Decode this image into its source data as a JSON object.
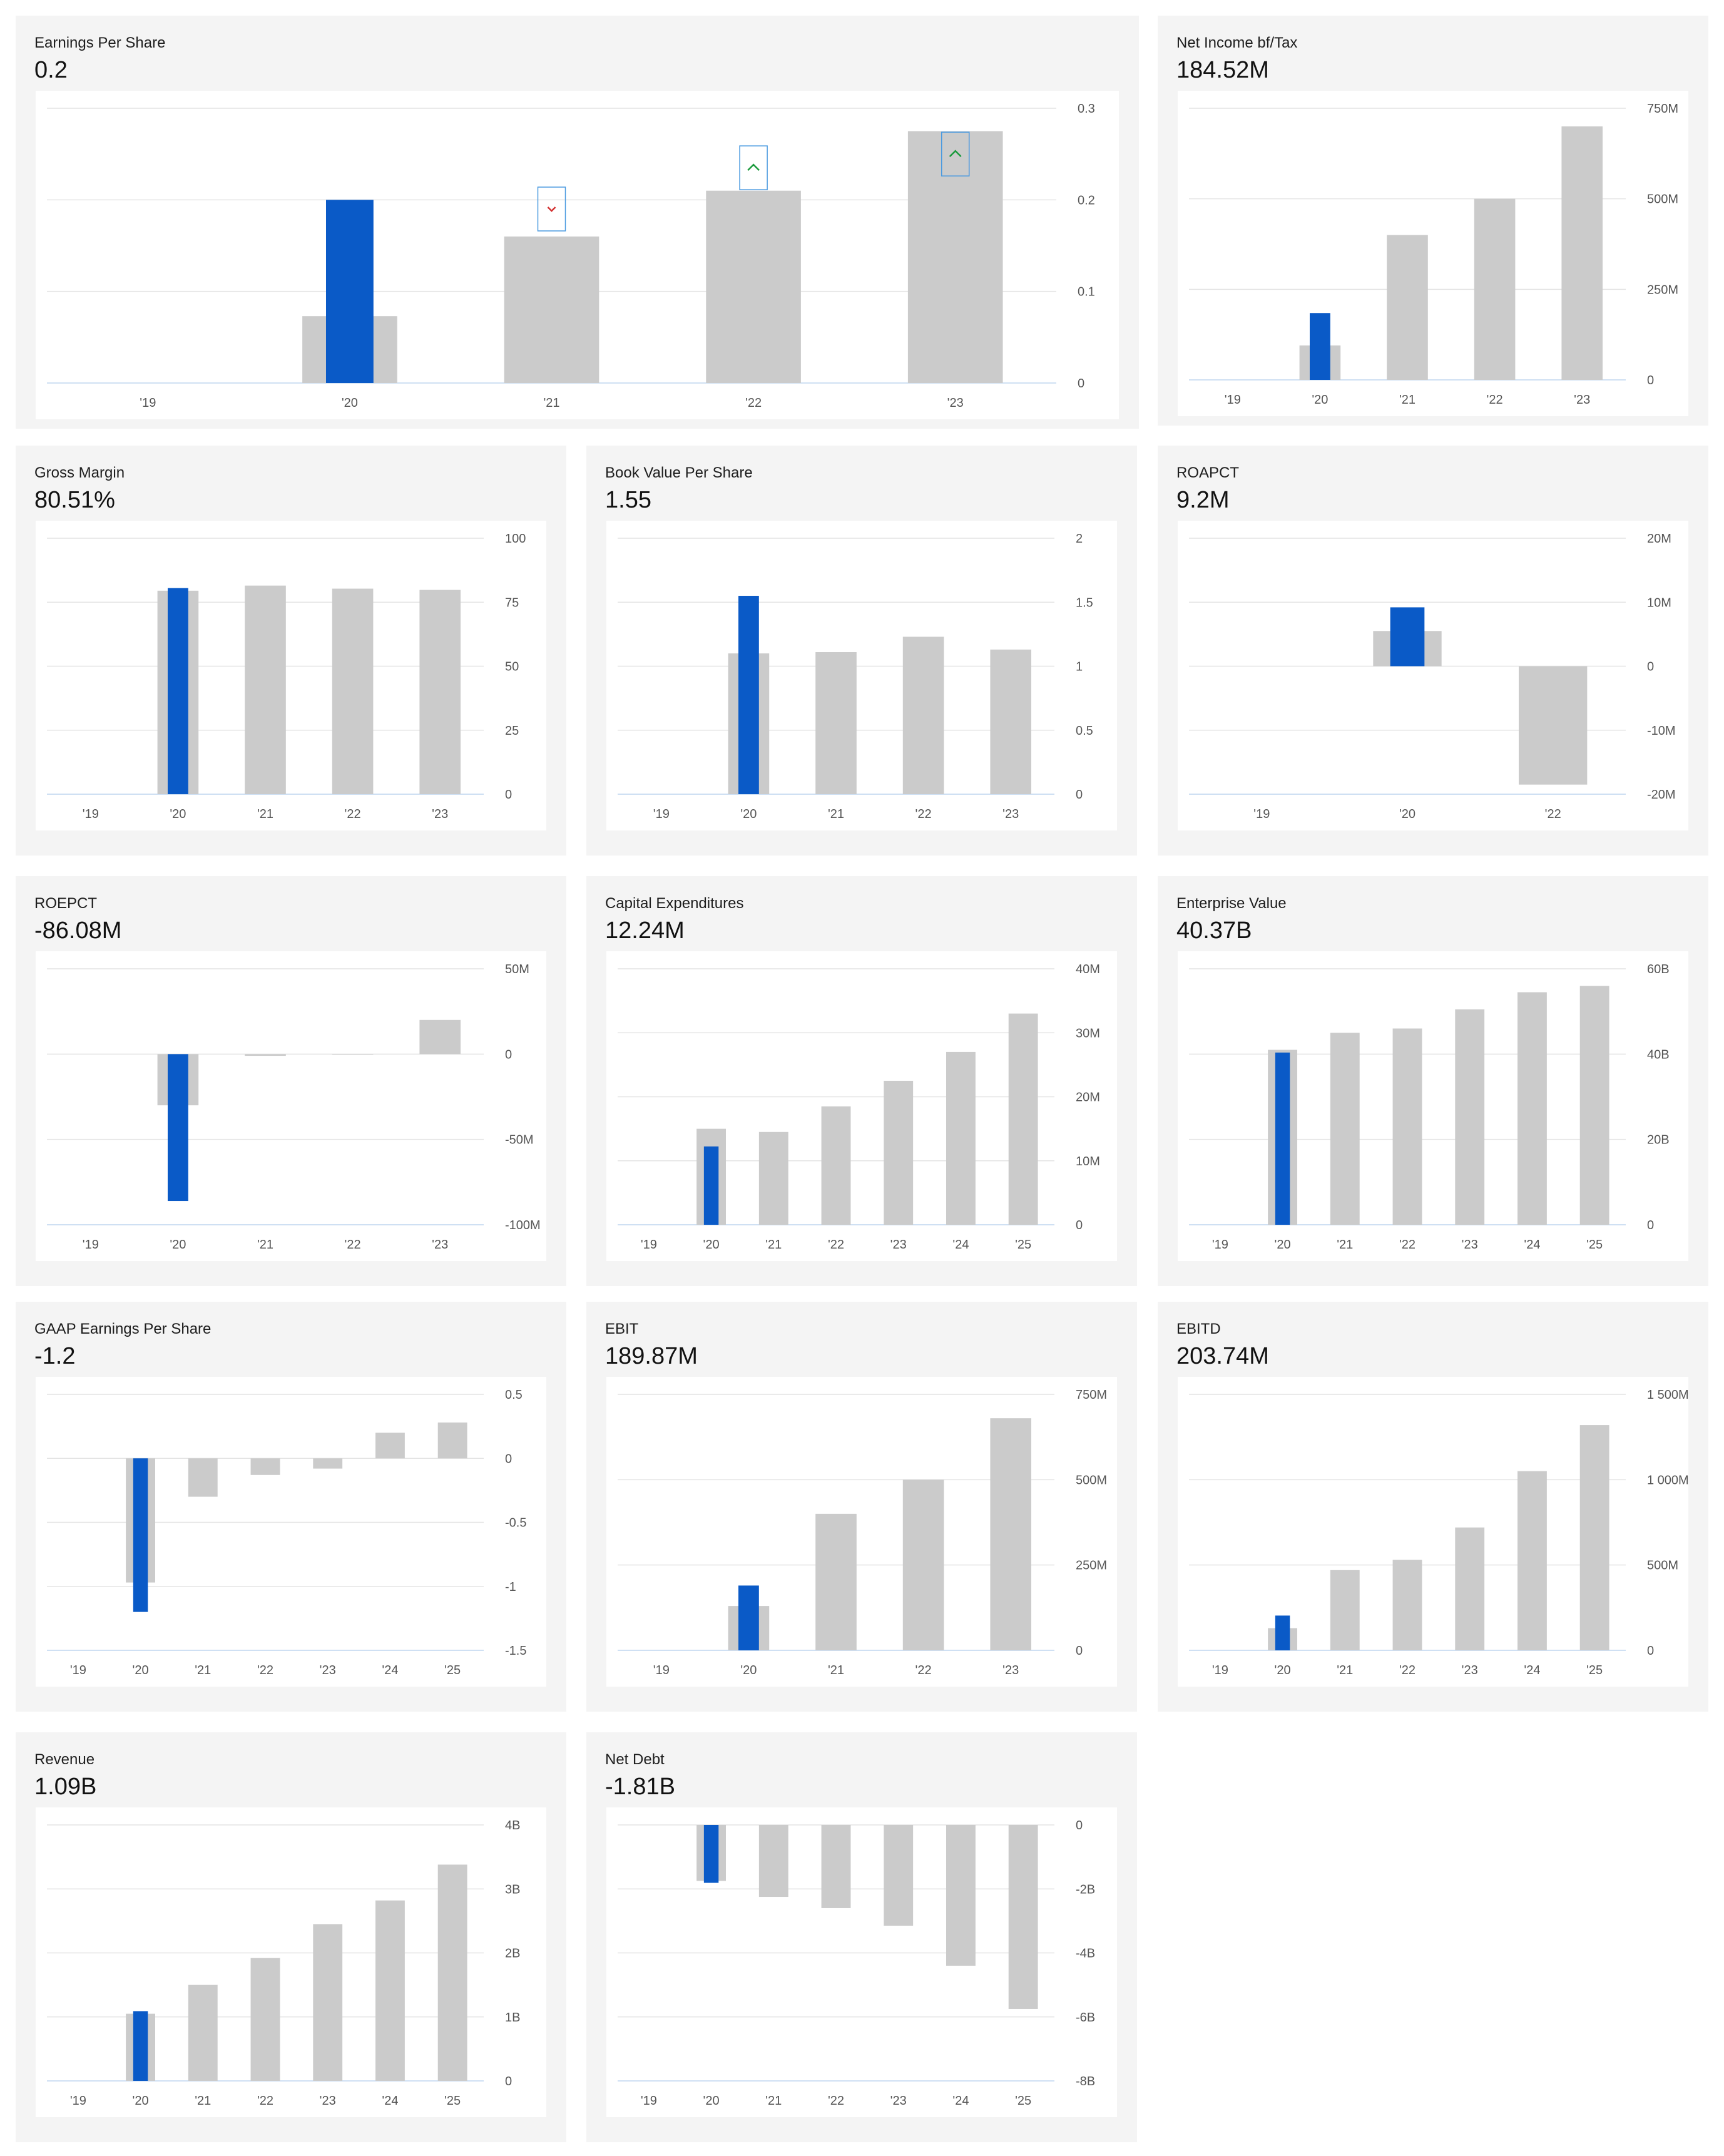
{
  "colors": {
    "highlight": "#0a5ac7",
    "bar": "#cbcbcb",
    "grid": "#e4e4e4",
    "baseline": "#cfe0f3",
    "tick_text": "#555555",
    "card_bg": "#f4f4f4",
    "up_marker": "#1a9a3c",
    "down_marker": "#d33030",
    "marker_box": "#4a9ae0"
  },
  "chart_data": [
    {
      "id": "eps",
      "type": "bar",
      "title": "Earnings Per Share",
      "value_label": "0.2",
      "categories": [
        "'19",
        "'20",
        "'21",
        "'22",
        "'23"
      ],
      "values": [
        null,
        0.073,
        0.16,
        0.21,
        0.275
      ],
      "highlight": {
        "category": "'20",
        "value": 0.2
      },
      "markers": [
        {
          "category": "'21",
          "direction": "down",
          "value": 0.19
        },
        {
          "category": "'22",
          "direction": "up",
          "value": 0.235
        },
        {
          "category": "'23",
          "direction": "up",
          "value": 0.25
        }
      ],
      "y_ticks": [
        0,
        0.1,
        0.2,
        0.3
      ],
      "y_tick_labels": [
        "0",
        "0.1",
        "0.2",
        "0.3"
      ],
      "ylim": [
        0,
        0.3
      ],
      "grid": true,
      "axis_position": "right"
    },
    {
      "id": "nibt",
      "type": "bar",
      "title": "Net Income bf/Tax",
      "value_label": "184.52M",
      "categories": [
        "'19",
        "'20",
        "'21",
        "'22",
        "'23"
      ],
      "values": [
        null,
        95,
        400,
        500,
        700
      ],
      "highlight": {
        "category": "'20",
        "value": 184.52
      },
      "y_ticks": [
        0,
        250,
        500,
        750
      ],
      "y_tick_labels": [
        "0",
        "250M",
        "500M",
        "750M"
      ],
      "ylim": [
        0,
        750
      ],
      "grid": true,
      "axis_position": "right"
    },
    {
      "id": "gm",
      "type": "bar",
      "title": "Gross Margin",
      "value_label": "80.51%",
      "categories": [
        "'19",
        "'20",
        "'21",
        "'22",
        "'23"
      ],
      "values": [
        null,
        79.5,
        81.5,
        80.3,
        79.8
      ],
      "highlight": {
        "category": "'20",
        "value": 80.51
      },
      "y_ticks": [
        0,
        25,
        50,
        75,
        100
      ],
      "y_tick_labels": [
        "0",
        "25",
        "50",
        "75",
        "100"
      ],
      "ylim": [
        0,
        100
      ],
      "grid": true,
      "axis_position": "right"
    },
    {
      "id": "bvps",
      "type": "bar",
      "title": "Book Value Per Share",
      "value_label": "1.55",
      "categories": [
        "'19",
        "'20",
        "'21",
        "'22",
        "'23"
      ],
      "values": [
        null,
        1.1,
        1.11,
        1.23,
        1.13
      ],
      "highlight": {
        "category": "'20",
        "value": 1.55
      },
      "y_ticks": [
        0,
        0.5,
        1,
        1.5,
        2
      ],
      "y_tick_labels": [
        "0",
        "0.5",
        "1",
        "1.5",
        "2"
      ],
      "ylim": [
        0,
        2
      ],
      "grid": true,
      "axis_position": "right"
    },
    {
      "id": "roa",
      "type": "bar",
      "title": "ROAPCT",
      "value_label": "9.2M",
      "categories": [
        "'19",
        "'20",
        "'22"
      ],
      "values": [
        null,
        5.5,
        -18.5
      ],
      "highlight": {
        "category": "'20",
        "value": 9.2
      },
      "y_ticks": [
        -20,
        -10,
        0,
        10,
        20
      ],
      "y_tick_labels": [
        "-20M",
        "-10M",
        "0",
        "10M",
        "20M"
      ],
      "ylim": [
        -20,
        20
      ],
      "grid": true,
      "axis_position": "right"
    },
    {
      "id": "roe",
      "type": "bar",
      "title": "ROEPCT",
      "value_label": "-86.08M",
      "categories": [
        "'19",
        "'20",
        "'21",
        "'22",
        "'23"
      ],
      "values": [
        null,
        -30,
        -1,
        0,
        20
      ],
      "highlight": {
        "category": "'20",
        "value": -86.08
      },
      "y_ticks": [
        -100,
        -50,
        0,
        50
      ],
      "y_tick_labels": [
        "-100M",
        "-50M",
        "0",
        "50M"
      ],
      "ylim": [
        -100,
        50
      ],
      "grid": true,
      "axis_position": "right"
    },
    {
      "id": "capex",
      "type": "bar",
      "title": "Capital Expenditures",
      "value_label": "12.24M",
      "categories": [
        "'19",
        "'20",
        "'21",
        "'22",
        "'23",
        "'24",
        "'25"
      ],
      "values": [
        null,
        15,
        14.5,
        18.5,
        22.5,
        27,
        33
      ],
      "highlight": {
        "category": "'20",
        "value": 12.24
      },
      "y_ticks": [
        0,
        10,
        20,
        30,
        40
      ],
      "y_tick_labels": [
        "0",
        "10M",
        "20M",
        "30M",
        "40M"
      ],
      "ylim": [
        0,
        40
      ],
      "grid": true,
      "axis_position": "right"
    },
    {
      "id": "ev",
      "type": "bar",
      "title": "Enterprise Value",
      "value_label": "40.37B",
      "categories": [
        "'19",
        "'20",
        "'21",
        "'22",
        "'23",
        "'24",
        "'25"
      ],
      "values": [
        null,
        41,
        45,
        46,
        50.5,
        54.5,
        56
      ],
      "highlight": {
        "category": "'20",
        "value": 40.37
      },
      "y_ticks": [
        0,
        20,
        40,
        60
      ],
      "y_tick_labels": [
        "0",
        "20B",
        "40B",
        "60B"
      ],
      "ylim": [
        0,
        60
      ],
      "grid": true,
      "axis_position": "right"
    },
    {
      "id": "gaap",
      "type": "bar",
      "title": "GAAP Earnings Per Share",
      "value_label": "-1.2",
      "categories": [
        "'19",
        "'20",
        "'21",
        "'22",
        "'23",
        "'24",
        "'25"
      ],
      "values": [
        null,
        -0.97,
        -0.3,
        -0.13,
        -0.08,
        0.2,
        0.28
      ],
      "highlight": {
        "category": "'20",
        "value": -1.2
      },
      "y_ticks": [
        -1.5,
        -1,
        -0.5,
        0,
        0.5
      ],
      "y_tick_labels": [
        "-1.5",
        "-1",
        "-0.5",
        "0",
        "0.5"
      ],
      "ylim": [
        -1.5,
        0.5
      ],
      "grid": true,
      "axis_position": "right"
    },
    {
      "id": "ebit",
      "type": "bar",
      "title": "EBIT",
      "value_label": "189.87M",
      "categories": [
        "'19",
        "'20",
        "'21",
        "'22",
        "'23"
      ],
      "values": [
        null,
        130,
        400,
        500,
        680
      ],
      "highlight": {
        "category": "'20",
        "value": 189.87
      },
      "y_ticks": [
        0,
        250,
        500,
        750
      ],
      "y_tick_labels": [
        "0",
        "250M",
        "500M",
        "750M"
      ],
      "ylim": [
        0,
        750
      ],
      "grid": true,
      "axis_position": "right"
    },
    {
      "id": "ebitd",
      "type": "bar",
      "title": "EBITD",
      "value_label": "203.74M",
      "categories": [
        "'19",
        "'20",
        "'21",
        "'22",
        "'23",
        "'24",
        "'25"
      ],
      "values": [
        null,
        130,
        470,
        530,
        720,
        1050,
        1320
      ],
      "highlight": {
        "category": "'20",
        "value": 203.74
      },
      "y_ticks": [
        0,
        500,
        1000,
        1500
      ],
      "y_tick_labels": [
        "0",
        "500M",
        "1 000M",
        "1 500M"
      ],
      "ylim": [
        0,
        1500
      ],
      "grid": true,
      "axis_position": "right"
    },
    {
      "id": "rev",
      "type": "bar",
      "title": "Revenue",
      "value_label": "1.09B",
      "categories": [
        "'19",
        "'20",
        "'21",
        "'22",
        "'23",
        "'24",
        "'25"
      ],
      "values": [
        null,
        1.05,
        1.5,
        1.92,
        2.45,
        2.82,
        3.38
      ],
      "highlight": {
        "category": "'20",
        "value": 1.09
      },
      "y_ticks": [
        0,
        1,
        2,
        3,
        4
      ],
      "y_tick_labels": [
        "0",
        "1B",
        "2B",
        "3B",
        "4B"
      ],
      "ylim": [
        0,
        4
      ],
      "grid": true,
      "axis_position": "right"
    },
    {
      "id": "netdebt",
      "type": "bar",
      "title": "Net Debt",
      "value_label": "-1.81B",
      "categories": [
        "'19",
        "'20",
        "'21",
        "'22",
        "'23",
        "'24",
        "'25"
      ],
      "values": [
        null,
        -1.75,
        -2.25,
        -2.6,
        -3.15,
        -4.4,
        -5.75
      ],
      "highlight": {
        "category": "'20",
        "value": -1.81
      },
      "y_ticks": [
        -8,
        -6,
        -4,
        -2,
        0
      ],
      "y_tick_labels": [
        "-8B",
        "-6B",
        "-4B",
        "-2B",
        "0"
      ],
      "ylim": [
        -8,
        0
      ],
      "grid": true,
      "axis_position": "right"
    }
  ]
}
